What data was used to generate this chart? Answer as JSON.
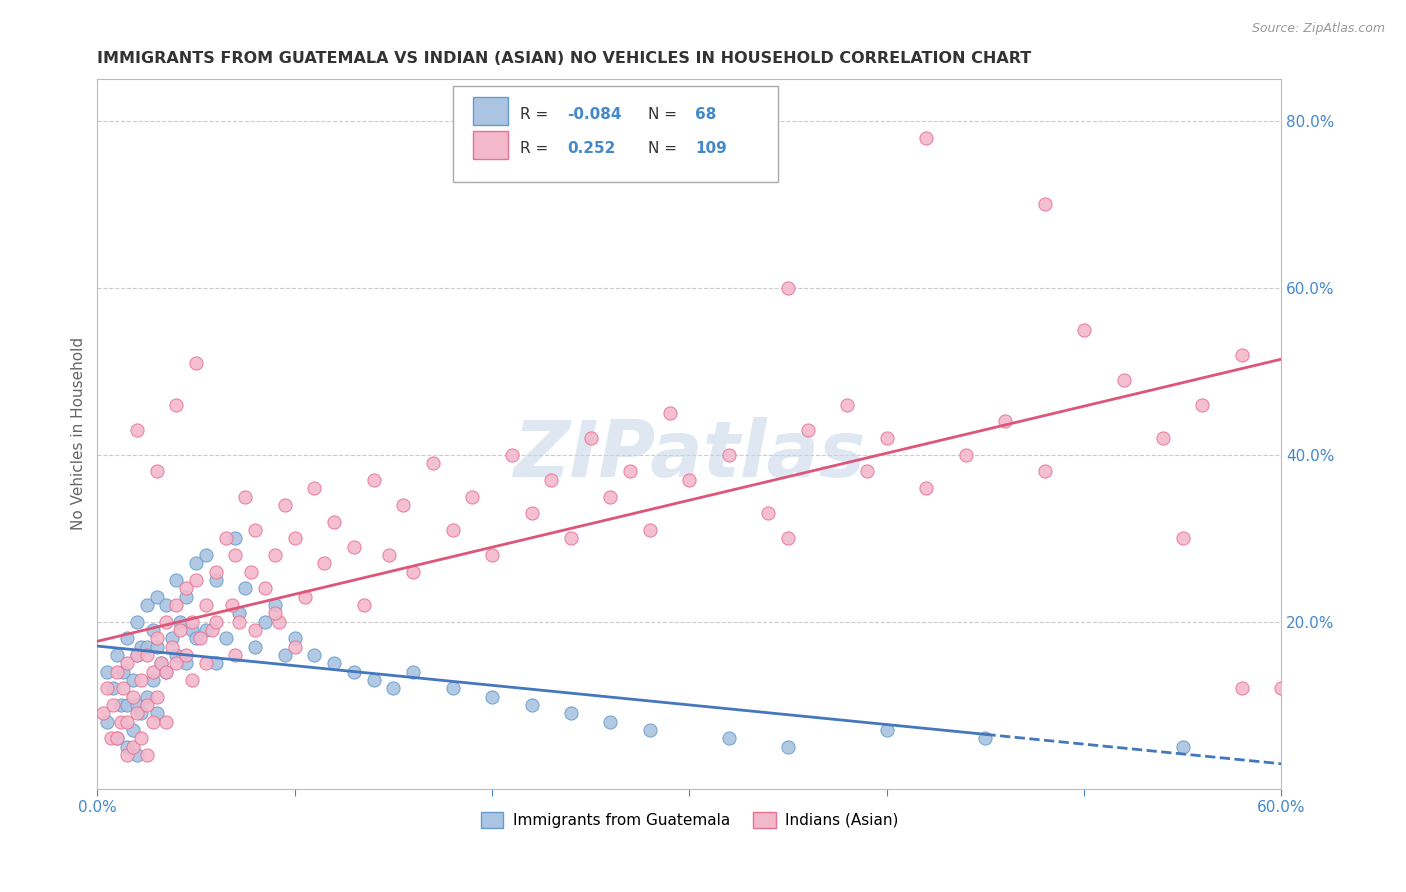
{
  "title": "IMMIGRANTS FROM GUATEMALA VS INDIAN (ASIAN) NO VEHICLES IN HOUSEHOLD CORRELATION CHART",
  "source": "Source: ZipAtlas.com",
  "ylabel": "No Vehicles in Household",
  "xlim": [
    0.0,
    0.6
  ],
  "ylim": [
    0.0,
    0.85
  ],
  "blue_color": "#aac4e2",
  "pink_color": "#f2b8cc",
  "blue_edge_color": "#6699cc",
  "pink_edge_color": "#e87090",
  "blue_line_color": "#4477bb",
  "pink_line_color": "#dd5577",
  "watermark": "ZIPatlas",
  "grid_color": "#cccccc",
  "title_color": "#333333",
  "axis_label_color": "#4488cc",
  "blue_scatter_x": [
    0.005,
    0.005,
    0.008,
    0.01,
    0.01,
    0.012,
    0.013,
    0.015,
    0.015,
    0.015,
    0.018,
    0.018,
    0.02,
    0.02,
    0.02,
    0.02,
    0.022,
    0.022,
    0.025,
    0.025,
    0.025,
    0.028,
    0.028,
    0.03,
    0.03,
    0.03,
    0.032,
    0.035,
    0.035,
    0.038,
    0.04,
    0.04,
    0.042,
    0.045,
    0.045,
    0.048,
    0.05,
    0.05,
    0.055,
    0.055,
    0.06,
    0.06,
    0.065,
    0.07,
    0.072,
    0.075,
    0.08,
    0.085,
    0.09,
    0.095,
    0.1,
    0.11,
    0.12,
    0.13,
    0.14,
    0.15,
    0.16,
    0.18,
    0.2,
    0.22,
    0.24,
    0.26,
    0.28,
    0.32,
    0.35,
    0.4,
    0.45,
    0.55
  ],
  "blue_scatter_y": [
    0.14,
    0.08,
    0.12,
    0.16,
    0.06,
    0.1,
    0.14,
    0.18,
    0.1,
    0.05,
    0.13,
    0.07,
    0.2,
    0.16,
    0.1,
    0.04,
    0.17,
    0.09,
    0.22,
    0.17,
    0.11,
    0.19,
    0.13,
    0.23,
    0.17,
    0.09,
    0.15,
    0.22,
    0.14,
    0.18,
    0.25,
    0.16,
    0.2,
    0.23,
    0.15,
    0.19,
    0.27,
    0.18,
    0.28,
    0.19,
    0.25,
    0.15,
    0.18,
    0.3,
    0.21,
    0.24,
    0.17,
    0.2,
    0.22,
    0.16,
    0.18,
    0.16,
    0.15,
    0.14,
    0.13,
    0.12,
    0.14,
    0.12,
    0.11,
    0.1,
    0.09,
    0.08,
    0.07,
    0.06,
    0.05,
    0.07,
    0.06,
    0.05
  ],
  "pink_scatter_x": [
    0.003,
    0.005,
    0.007,
    0.008,
    0.01,
    0.01,
    0.012,
    0.013,
    0.015,
    0.015,
    0.015,
    0.018,
    0.018,
    0.02,
    0.02,
    0.022,
    0.022,
    0.025,
    0.025,
    0.025,
    0.028,
    0.028,
    0.03,
    0.03,
    0.032,
    0.035,
    0.035,
    0.035,
    0.038,
    0.04,
    0.04,
    0.042,
    0.045,
    0.045,
    0.048,
    0.048,
    0.05,
    0.052,
    0.055,
    0.055,
    0.058,
    0.06,
    0.065,
    0.068,
    0.07,
    0.072,
    0.075,
    0.078,
    0.08,
    0.085,
    0.09,
    0.092,
    0.095,
    0.1,
    0.105,
    0.11,
    0.115,
    0.12,
    0.13,
    0.135,
    0.14,
    0.148,
    0.155,
    0.16,
    0.17,
    0.18,
    0.19,
    0.2,
    0.21,
    0.22,
    0.23,
    0.24,
    0.25,
    0.26,
    0.27,
    0.28,
    0.29,
    0.3,
    0.32,
    0.34,
    0.35,
    0.36,
    0.38,
    0.39,
    0.4,
    0.42,
    0.44,
    0.46,
    0.48,
    0.5,
    0.52,
    0.54,
    0.56,
    0.58,
    0.02,
    0.03,
    0.04,
    0.05,
    0.06,
    0.07,
    0.08,
    0.09,
    0.1,
    0.35,
    0.42,
    0.48,
    0.58,
    0.6,
    0.55
  ],
  "pink_scatter_y": [
    0.09,
    0.12,
    0.06,
    0.1,
    0.14,
    0.06,
    0.08,
    0.12,
    0.15,
    0.08,
    0.04,
    0.11,
    0.05,
    0.16,
    0.09,
    0.13,
    0.06,
    0.16,
    0.1,
    0.04,
    0.14,
    0.08,
    0.18,
    0.11,
    0.15,
    0.2,
    0.14,
    0.08,
    0.17,
    0.22,
    0.15,
    0.19,
    0.24,
    0.16,
    0.2,
    0.13,
    0.25,
    0.18,
    0.22,
    0.15,
    0.19,
    0.26,
    0.3,
    0.22,
    0.28,
    0.2,
    0.35,
    0.26,
    0.31,
    0.24,
    0.28,
    0.2,
    0.34,
    0.3,
    0.23,
    0.36,
    0.27,
    0.32,
    0.29,
    0.22,
    0.37,
    0.28,
    0.34,
    0.26,
    0.39,
    0.31,
    0.35,
    0.28,
    0.4,
    0.33,
    0.37,
    0.3,
    0.42,
    0.35,
    0.38,
    0.31,
    0.45,
    0.37,
    0.4,
    0.33,
    0.6,
    0.43,
    0.46,
    0.38,
    0.42,
    0.36,
    0.4,
    0.44,
    0.38,
    0.55,
    0.49,
    0.42,
    0.46,
    0.12,
    0.43,
    0.38,
    0.46,
    0.51,
    0.2,
    0.16,
    0.19,
    0.21,
    0.17,
    0.3,
    0.78,
    0.7,
    0.52,
    0.12,
    0.3
  ]
}
